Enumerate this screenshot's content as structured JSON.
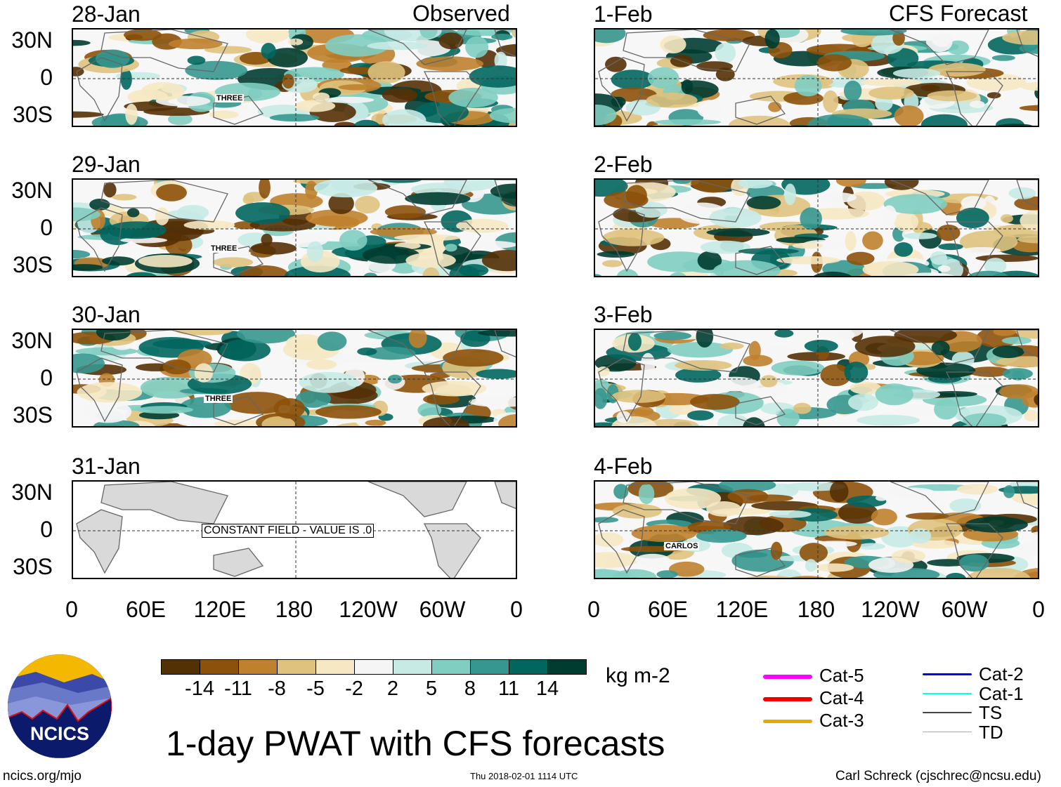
{
  "chart_data": {
    "type": "heatmap",
    "title": "1-day PWAT with CFS forecasts",
    "units": "kg m-2",
    "columns": [
      {
        "header": "Observed",
        "panels": [
          "28-Jan",
          "29-Jan",
          "30-Jan",
          "31-Jan"
        ]
      },
      {
        "header": "CFS Forecast",
        "panels": [
          "1-Feb",
          "2-Feb",
          "3-Feb",
          "4-Feb"
        ]
      }
    ],
    "lat_ticks": [
      "30N",
      "0",
      "30S"
    ],
    "lon_ticks": [
      "0",
      "60E",
      "120E",
      "180",
      "120W",
      "60W",
      "0"
    ],
    "colorbar": {
      "ticks": [
        "-14",
        "-11",
        "-8",
        "-5",
        "-2",
        "2",
        "5",
        "8",
        "11",
        "14"
      ],
      "colors": [
        "#543005",
        "#8c510a",
        "#bf812d",
        "#dfc27d",
        "#f6e8c3",
        "#f5f5f5",
        "#c7eae5",
        "#80cdc1",
        "#35978f",
        "#01665e",
        "#003c30"
      ]
    },
    "annotations": {
      "storm_three": "THREE",
      "storm_carlos": "CARLOS",
      "constant_field": "CONSTANT FIELD - VALUE IS .0"
    },
    "legend": [
      {
        "label": "Cat-5",
        "color": "#ff00ff"
      },
      {
        "label": "Cat-4",
        "color": "#ee0000"
      },
      {
        "label": "Cat-3",
        "color": "#e8a800"
      },
      {
        "label": "Cat-2",
        "color": "#0000ee"
      },
      {
        "label": "Cat-1",
        "color": "#00ffff"
      },
      {
        "label": "TS",
        "color": "#444444"
      },
      {
        "label": "TD",
        "color": "#aaaaaa"
      }
    ]
  },
  "footer": {
    "site": "ncics.org/mjo",
    "timestamp": "Thu 2018-02-01 1114 UTC",
    "credit": "Carl Schreck (cjschrec@ncsu.edu)",
    "logo_text": "NCICS"
  }
}
